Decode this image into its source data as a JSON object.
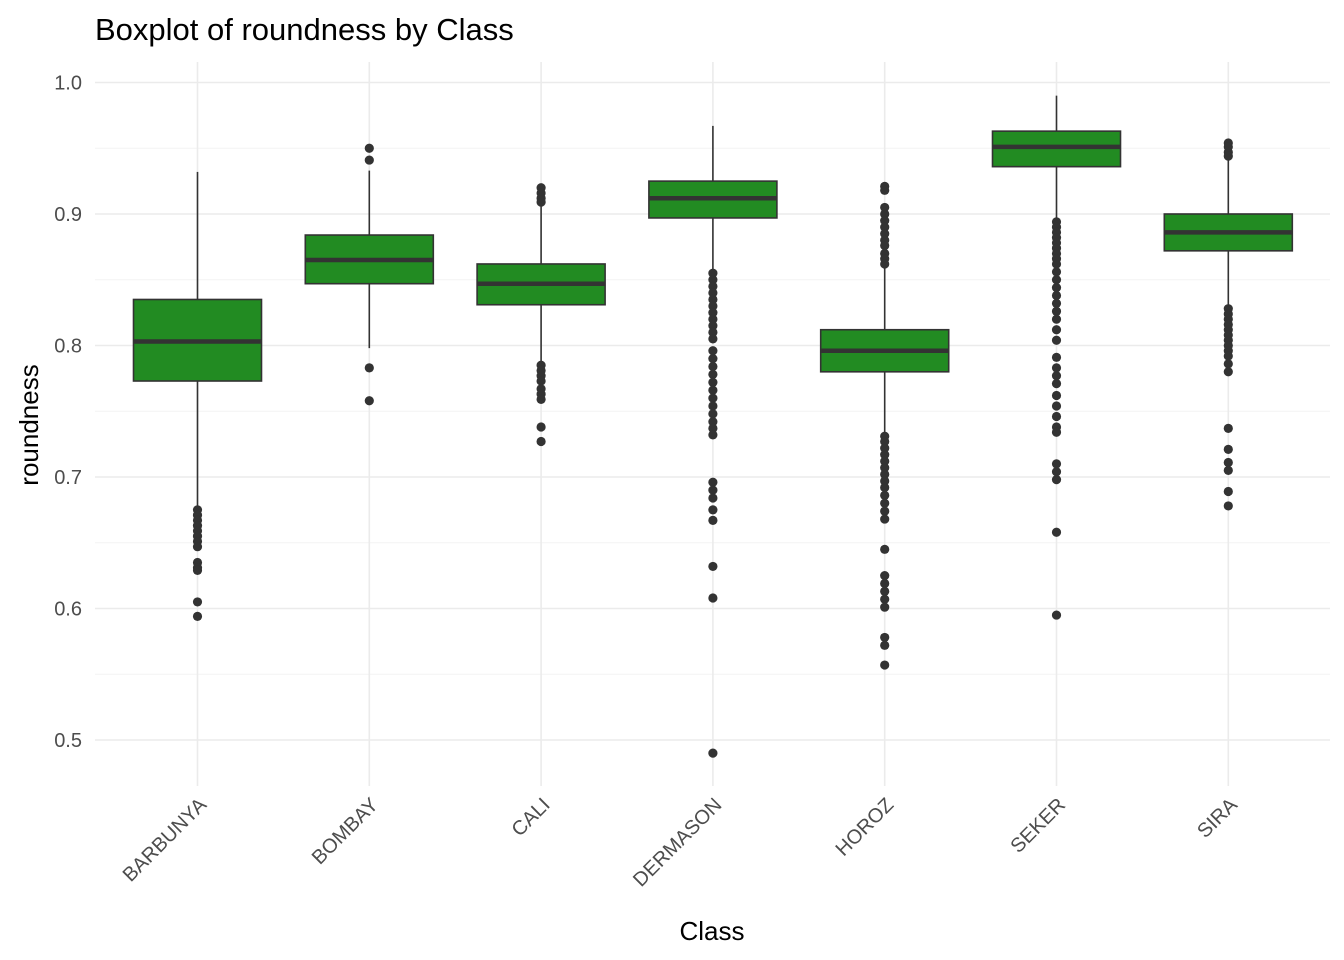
{
  "chart_data": {
    "type": "boxplot",
    "title": "Boxplot of roundness by Class",
    "xlabel": "Class",
    "ylabel": "roundness",
    "ylim": [
      0.47,
      1.025
    ],
    "yticks": [
      0.5,
      0.6,
      0.7,
      0.8,
      0.9,
      1.0
    ],
    "ytick_labels": [
      "0.5",
      "0.6",
      "0.7",
      "0.8",
      "0.9",
      "1.0"
    ],
    "grid": true,
    "box_color": "#228b22",
    "outline_color": "#333333",
    "categories": [
      "BARBUNYA",
      "BOMBAY",
      "CALI",
      "DERMASON",
      "HOROZ",
      "SEKER",
      "SIRA"
    ],
    "boxes": [
      {
        "name": "BARBUNYA",
        "whisker_low": 0.677,
        "q1": 0.773,
        "median": 0.803,
        "q3": 0.835,
        "whisker_high": 0.932,
        "outliers": [
          0.675,
          0.671,
          0.667,
          0.663,
          0.659,
          0.655,
          0.651,
          0.647,
          0.635,
          0.631,
          0.629,
          0.605,
          0.594
        ]
      },
      {
        "name": "BOMBAY",
        "whisker_low": 0.798,
        "q1": 0.847,
        "median": 0.865,
        "q3": 0.884,
        "whisker_high": 0.933,
        "outliers": [
          0.95,
          0.941,
          0.783,
          0.758
        ]
      },
      {
        "name": "CALI",
        "whisker_low": 0.787,
        "q1": 0.831,
        "median": 0.847,
        "q3": 0.862,
        "whisker_high": 0.906,
        "outliers": [
          0.92,
          0.916,
          0.912,
          0.909,
          0.785,
          0.781,
          0.777,
          0.773,
          0.767,
          0.763,
          0.759,
          0.738,
          0.727
        ]
      },
      {
        "name": "DERMASON",
        "whisker_low": 0.858,
        "q1": 0.897,
        "median": 0.912,
        "q3": 0.925,
        "whisker_high": 0.967,
        "outliers": [
          0.855,
          0.85,
          0.845,
          0.84,
          0.835,
          0.83,
          0.825,
          0.82,
          0.815,
          0.81,
          0.805,
          0.796,
          0.79,
          0.784,
          0.778,
          0.772,
          0.766,
          0.76,
          0.754,
          0.748,
          0.742,
          0.737,
          0.732,
          0.696,
          0.69,
          0.684,
          0.675,
          0.667,
          0.632,
          0.608,
          0.49
        ]
      },
      {
        "name": "HOROZ",
        "whisker_low": 0.734,
        "q1": 0.78,
        "median": 0.796,
        "q3": 0.812,
        "whisker_high": 0.86,
        "outliers": [
          0.921,
          0.918,
          0.905,
          0.9,
          0.895,
          0.89,
          0.885,
          0.88,
          0.876,
          0.87,
          0.866,
          0.862,
          0.731,
          0.727,
          0.722,
          0.717,
          0.712,
          0.707,
          0.702,
          0.697,
          0.692,
          0.686,
          0.68,
          0.674,
          0.668,
          0.645,
          0.625,
          0.619,
          0.613,
          0.607,
          0.601,
          0.578,
          0.572,
          0.557
        ]
      },
      {
        "name": "SEKER",
        "whisker_low": 0.897,
        "q1": 0.936,
        "median": 0.951,
        "q3": 0.963,
        "whisker_high": 0.99,
        "outliers": [
          0.894,
          0.89,
          0.886,
          0.882,
          0.878,
          0.874,
          0.87,
          0.866,
          0.862,
          0.856,
          0.85,
          0.844,
          0.838,
          0.832,
          0.826,
          0.82,
          0.812,
          0.804,
          0.791,
          0.783,
          0.777,
          0.771,
          0.762,
          0.754,
          0.746,
          0.738,
          0.734,
          0.71,
          0.704,
          0.698,
          0.658,
          0.595
        ]
      },
      {
        "name": "SIRA",
        "whisker_low": 0.83,
        "q1": 0.872,
        "median": 0.886,
        "q3": 0.9,
        "whisker_high": 0.941,
        "outliers": [
          0.954,
          0.951,
          0.947,
          0.944,
          0.828,
          0.824,
          0.82,
          0.816,
          0.812,
          0.808,
          0.804,
          0.8,
          0.796,
          0.792,
          0.786,
          0.78,
          0.737,
          0.721,
          0.711,
          0.705,
          0.689,
          0.678
        ]
      }
    ]
  }
}
